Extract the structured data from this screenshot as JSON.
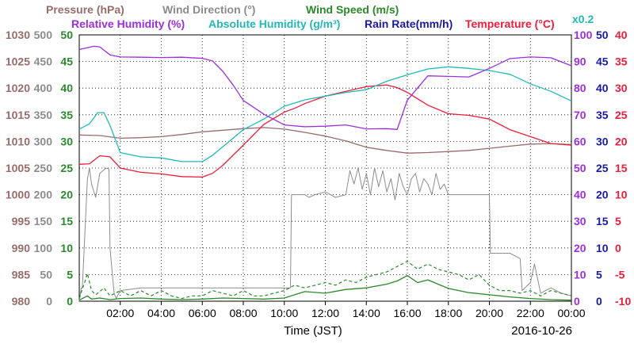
{
  "chart_data": {
    "type": "line",
    "x_axis": {
      "label": "Time (JST)",
      "date": "2016-10-26",
      "tick_labels": [
        "02:00",
        "04:00",
        "06:00",
        "08:00",
        "10:00",
        "12:00",
        "14:00",
        "16:00",
        "18:00",
        "20:00",
        "22:00",
        "00:00"
      ],
      "range_hours": [
        0,
        24
      ]
    },
    "grid": true,
    "legend": {
      "row1": [
        {
          "text": "Pressure (hPa)",
          "color": "#9a6b6b"
        },
        {
          "text": "Wind Direction (°)",
          "color": "#8c8c8c"
        },
        {
          "text": "Wind Speed (m/s)",
          "color": "#2a8a2a"
        }
      ],
      "row2": [
        {
          "text": "Relative Humidity (%)",
          "color": "#9c2ee0"
        },
        {
          "text": "Absolute Humidity (g/m³)",
          "color": "#22b8b8"
        },
        {
          "text": "Rain Rate(mm/h)",
          "color": "#1a1aa8"
        },
        {
          "text": "Temperature (°C)",
          "color": "#ee1d3a"
        }
      ],
      "multiplier": {
        "text": "x0.2",
        "color": "#22b8b8"
      }
    },
    "axes": [
      {
        "name": "Pressure (hPa)",
        "color": "#9a6b6b",
        "range": [
          980,
          1030
        ],
        "ticks": [
          "980",
          "985",
          "990",
          "995",
          "1000",
          "1005",
          "1010",
          "1015",
          "1020",
          "1025",
          "1030"
        ]
      },
      {
        "name": "Wind Direction (°)",
        "color": "#8c8c8c",
        "range": [
          0,
          500
        ],
        "ticks": [
          "0",
          "50",
          "100",
          "150",
          "200",
          "250",
          "300",
          "350",
          "400",
          "450",
          "500"
        ]
      },
      {
        "name": "Wind Speed (m/s)",
        "color": "#2a8a2a",
        "range": [
          0,
          50
        ],
        "ticks": [
          "0",
          "5",
          "10",
          "15",
          "20",
          "25",
          "30",
          "35",
          "40",
          "45",
          "50"
        ]
      },
      {
        "name": "Relative Humidity (%)",
        "color": "#9c2ee0",
        "range": [
          0,
          100
        ],
        "ticks": [
          "0",
          "10",
          "20",
          "30",
          "40",
          "50",
          "60",
          "70",
          "80",
          "90",
          "100"
        ]
      },
      {
        "name": "Rain Rate(mm/h)",
        "color": "#1a1aa8",
        "range": [
          0,
          50
        ],
        "ticks": [
          "0",
          "5",
          "10",
          "15",
          "20",
          "25",
          "30",
          "35",
          "40",
          "45",
          "50"
        ]
      },
      {
        "name": "Temperature (°C)",
        "color": "#ee1d3a",
        "range": [
          -10,
          40
        ],
        "ticks": [
          "-10",
          "-5",
          "0",
          "5",
          "10",
          "15",
          "20",
          "25",
          "30",
          "35",
          "40"
        ]
      }
    ],
    "series": [
      {
        "name": "Pressure (hPa)",
        "color": "#9a6b6b",
        "axis": 0,
        "x": [
          0,
          1,
          2,
          3,
          4,
          5,
          6,
          7,
          8,
          9,
          10,
          11,
          12,
          13,
          14,
          15,
          16,
          17,
          18,
          19,
          20,
          21,
          22,
          23,
          24
        ],
        "y": [
          1011.2,
          1011.1,
          1010.6,
          1010.7,
          1010.9,
          1011.3,
          1011.8,
          1012.1,
          1012.4,
          1012.6,
          1012.3,
          1011.7,
          1011.0,
          1010.1,
          1008.9,
          1008.3,
          1007.8,
          1007.9,
          1008.1,
          1008.3,
          1008.7,
          1009.1,
          1009.5,
          1009.6,
          1009.4
        ]
      },
      {
        "name": "Temperature (°C)",
        "color": "#ee1d3a",
        "axis": 5,
        "x": [
          0,
          0.5,
          1,
          1.5,
          2,
          3,
          4,
          5,
          6,
          6.5,
          7,
          8,
          9,
          10,
          10.5,
          11,
          12,
          13,
          14,
          15,
          15.5,
          16,
          17,
          18,
          19,
          20,
          21,
          22,
          23,
          24
        ],
        "y": [
          15.7,
          15.8,
          17.3,
          17.1,
          15.0,
          14.2,
          13.9,
          13.4,
          13.3,
          14.0,
          15.5,
          19.3,
          23.2,
          25.5,
          26.2,
          27.1,
          28.5,
          29.4,
          30.3,
          30.6,
          30.1,
          29.2,
          26.8,
          25.2,
          24.9,
          24.2,
          22.2,
          20.9,
          19.6,
          19.3
        ]
      },
      {
        "name": "Absolute Humidity (g/m³)",
        "color": "#22b8b8",
        "axis": 5,
        "scale": 0.2,
        "x": [
          0,
          0.5,
          0.9,
          1.2,
          1.5,
          2,
          3,
          4,
          5,
          6,
          6.5,
          7,
          8,
          9,
          10,
          11,
          12,
          13,
          14,
          15,
          16,
          17,
          18,
          19,
          20,
          21,
          22,
          23,
          24
        ],
        "y": [
          22.3,
          23.3,
          25.4,
          25.4,
          23.0,
          17.9,
          17.1,
          16.9,
          16.2,
          16.2,
          17.4,
          19.0,
          22.2,
          24.2,
          26.6,
          27.8,
          28.5,
          29.2,
          29.7,
          31.3,
          32.5,
          33.6,
          34.0,
          33.7,
          33.3,
          32.6,
          30.8,
          29.4,
          27.6
        ]
      },
      {
        "name": "Relative Humidity (%)",
        "color": "#9c2ee0",
        "axis": 3,
        "x": [
          0,
          0.7,
          1.0,
          1.2,
          1.5,
          2,
          3,
          4,
          5,
          6,
          6.5,
          7,
          7.5,
          8,
          9,
          10,
          11,
          12,
          13,
          14,
          15,
          15.5,
          16,
          17,
          18,
          19,
          20,
          21,
          22,
          23,
          24
        ],
        "y": [
          94.5,
          95.7,
          95.5,
          94.3,
          92.5,
          91.7,
          91.6,
          91.5,
          91.6,
          91.2,
          90.2,
          86.3,
          81.2,
          75.4,
          70.2,
          66.2,
          65.5,
          65.7,
          66.2,
          64.7,
          64.8,
          64.5,
          75.5,
          84.6,
          84.4,
          84.2,
          87.4,
          91.1,
          91.7,
          91.4,
          88.4
        ]
      },
      {
        "name": "Wind Direction (°)",
        "color": "#8c8c8c",
        "axis": 1,
        "x": [
          0,
          0.1,
          0.15,
          0.4,
          0.5,
          0.6,
          0.8,
          1.0,
          1.3,
          1.45,
          1.5,
          1.7,
          1.8,
          2.0,
          3.0,
          4.0,
          5.0,
          6.0,
          7.0,
          8.0,
          9.0,
          10.3,
          10.35,
          10.5,
          11.0,
          11.2,
          11.5,
          12.0,
          12.5,
          13.0,
          13.2,
          13.4,
          13.6,
          13.8,
          14.0,
          14.2,
          14.4,
          14.6,
          14.8,
          15.0,
          15.2,
          15.4,
          15.6,
          15.8,
          16.0,
          16.2,
          16.4,
          16.6,
          16.8,
          17.0,
          17.2,
          17.4,
          17.6,
          17.8,
          18.0,
          18.5,
          19.0,
          19.5,
          20.0,
          20.05,
          20.9,
          21.0,
          21.5,
          21.6,
          22.0,
          22.2,
          22.5,
          23.0,
          23.5,
          24.0
        ],
        "y": [
          0,
          25,
          25,
          230,
          250,
          220,
          195,
          240,
          250,
          248,
          100,
          15,
          5,
          20,
          25,
          25,
          25,
          25,
          25,
          25,
          25,
          25,
          200,
          200,
          200,
          195,
          200,
          205,
          195,
          200,
          245,
          220,
          250,
          210,
          240,
          200,
          250,
          215,
          245,
          205,
          230,
          190,
          240,
          215,
          200,
          230,
          240,
          205,
          230,
          220,
          200,
          240,
          210,
          220,
          200,
          200,
          200,
          200,
          200,
          90,
          90,
          90,
          80,
          20,
          35,
          70,
          15,
          25,
          15,
          10
        ]
      },
      {
        "name": "Wind Speed (m/s)",
        "color": "#2a8a2a",
        "axis": 2,
        "note": "max (dashed)",
        "x": [
          0,
          0.3,
          0.4,
          0.6,
          0.8,
          1.0,
          1.2,
          1.5,
          2,
          2.5,
          3,
          3.5,
          4,
          4.5,
          5,
          5.5,
          6,
          6.5,
          7,
          7.5,
          8,
          8.5,
          9,
          9.5,
          10,
          10.5,
          11,
          11.5,
          12,
          12.5,
          13,
          13.5,
          14,
          14.5,
          15,
          15.5,
          16,
          16.5,
          17,
          17.5,
          18,
          18.5,
          19,
          19.5,
          20,
          20.5,
          21,
          21.5,
          22,
          22.5,
          23,
          23.5,
          24
        ],
        "y": [
          0.5,
          4,
          5.2,
          2,
          1.2,
          1.8,
          2.5,
          1,
          2,
          1,
          2,
          1,
          2,
          1,
          0.5,
          1,
          1,
          2,
          1.5,
          1,
          2,
          1,
          1,
          1.5,
          2,
          3,
          2.5,
          3,
          3.5,
          3,
          4,
          3.5,
          4.5,
          5,
          5.5,
          6.5,
          7.5,
          6,
          7,
          6,
          5.5,
          5,
          4,
          5,
          3,
          2,
          2,
          1.5,
          2,
          1,
          2,
          1.5,
          1
        ]
      },
      {
        "name": "Wind Speed (m/s)",
        "color": "#2a8a2a",
        "axis": 2,
        "note": "mean (solid)",
        "x": [
          0,
          0.4,
          0.6,
          1.0,
          1.5,
          2,
          3,
          4,
          5,
          6,
          7,
          8,
          9,
          10,
          10.5,
          11,
          12,
          13,
          14,
          15,
          15.5,
          16,
          16.5,
          17,
          17.5,
          18,
          19,
          20,
          21,
          22,
          23,
          24
        ],
        "y": [
          0.2,
          1,
          0.4,
          0.6,
          0.3,
          0.5,
          0.6,
          0.4,
          0.3,
          0.4,
          0.6,
          0.5,
          0.4,
          0.6,
          1.2,
          1.8,
          1.5,
          2.2,
          2.5,
          3.2,
          3.8,
          4.8,
          3.5,
          4,
          3.2,
          2.4,
          1.6,
          1.2,
          0.8,
          0.5,
          0.3,
          0.2
        ]
      }
    ]
  }
}
